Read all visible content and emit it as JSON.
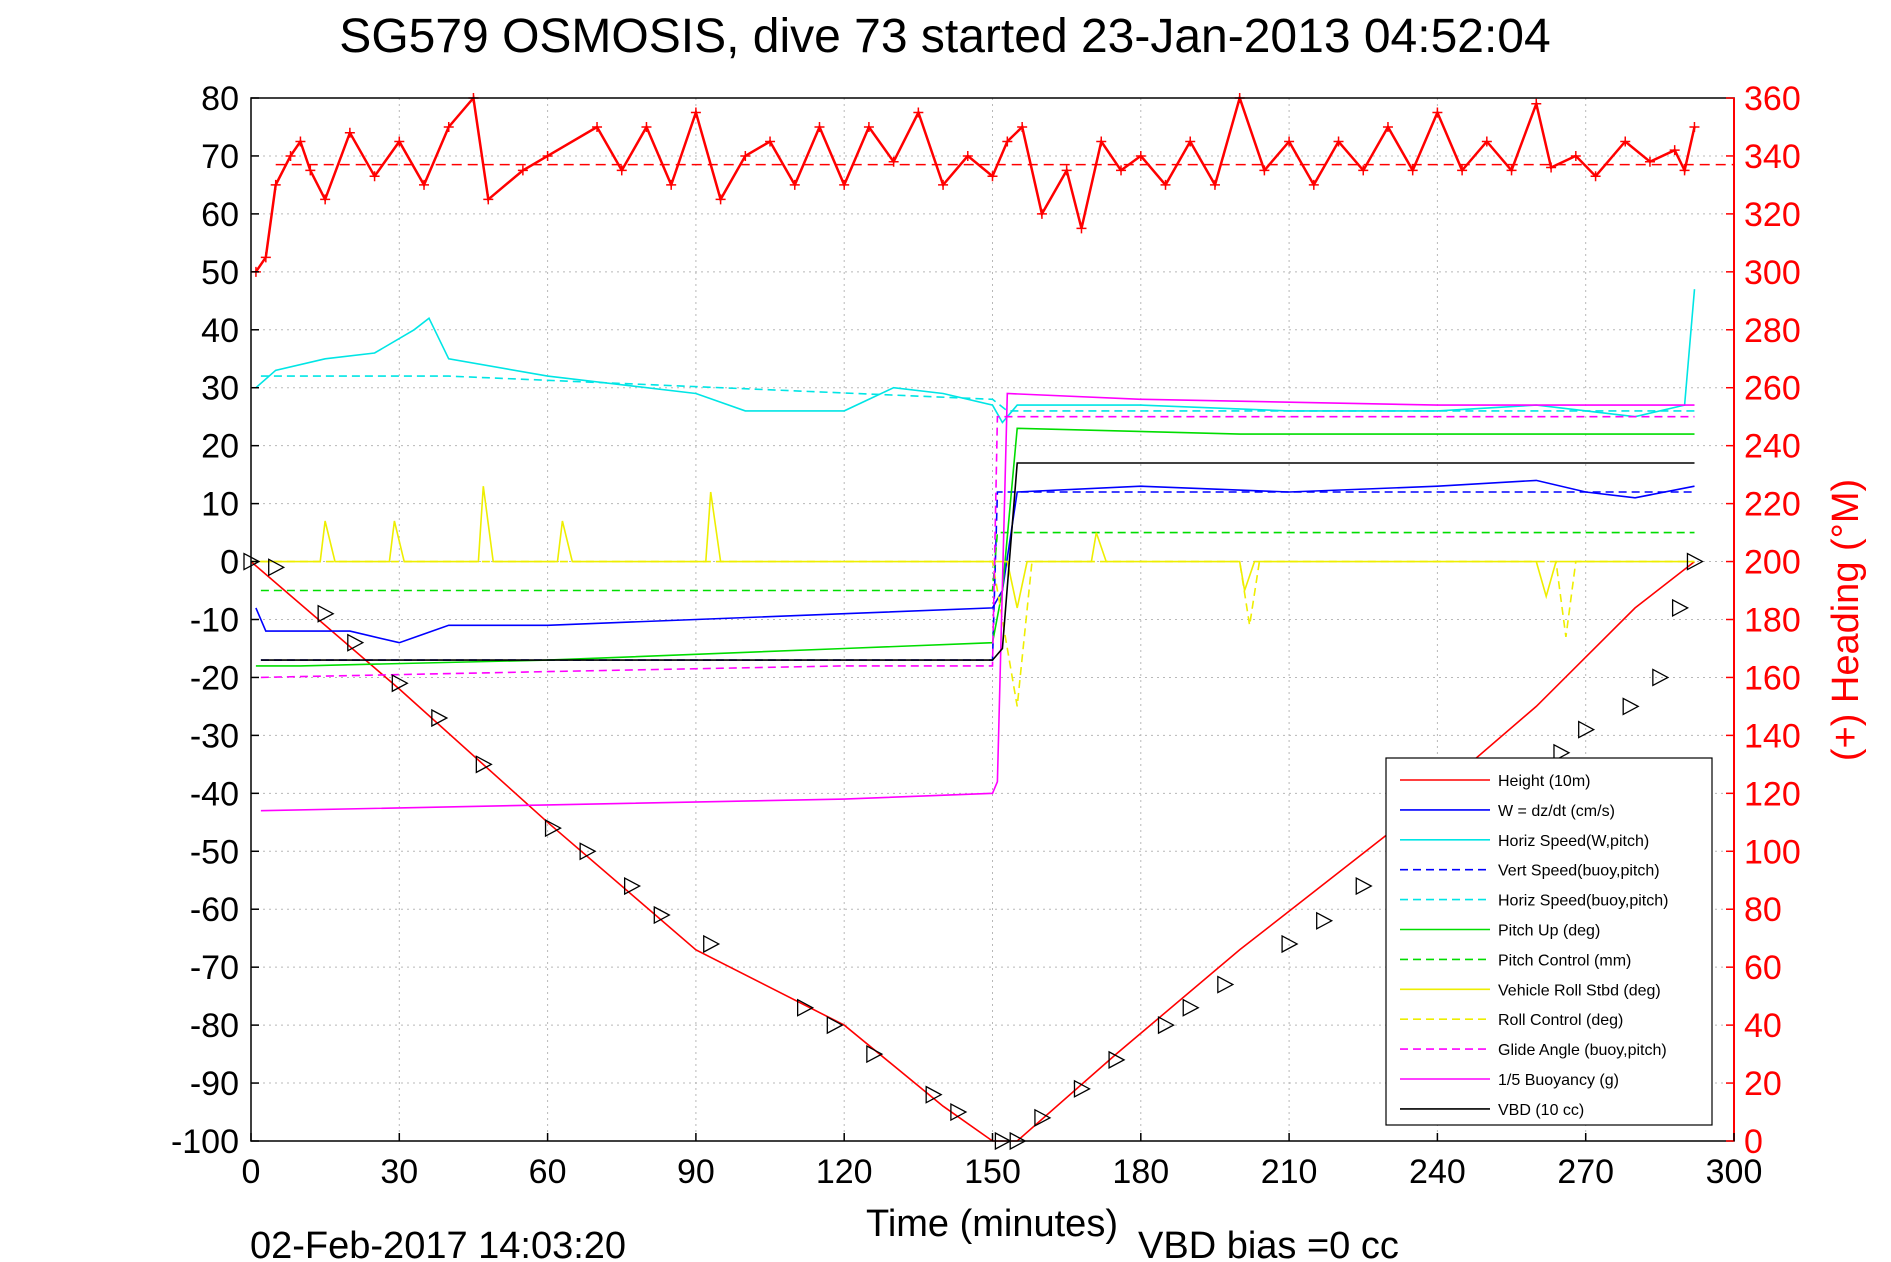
{
  "chart_data": {
    "type": "line",
    "title": "SG579 OSMOSIS, dive 73 started 23-Jan-2013 04:52:04",
    "xlabel": "Time (minutes)",
    "ylabel_right": "(+) Heading (°M)",
    "xlim": [
      0,
      300
    ],
    "ylim_left": [
      -100,
      80
    ],
    "ylim_right": [
      0,
      360
    ],
    "x_ticks": [
      "0",
      "30",
      "60",
      "90",
      "120",
      "150",
      "180",
      "210",
      "240",
      "270",
      "300"
    ],
    "y_left_ticks": [
      "80",
      "70",
      "60",
      "50",
      "40",
      "30",
      "20",
      "10",
      "0",
      "-10",
      "-20",
      "-30",
      "-40",
      "-50",
      "-60",
      "-70",
      "-80",
      "-90",
      "-100"
    ],
    "y_right_ticks": [
      "360",
      "340",
      "320",
      "300",
      "280",
      "260",
      "240",
      "220",
      "200",
      "180",
      "160",
      "140",
      "120",
      "100",
      "80",
      "60",
      "40",
      "20",
      "0"
    ],
    "grid": true,
    "legend_position": "bottom-right",
    "footer_left": "02-Feb-2017 14:03:20",
    "footer_right": "VBD bias =0 cc",
    "heading_reference": 337,
    "series": [
      {
        "name": "Height (10m)",
        "color": "#ff0000",
        "style": "solid",
        "points": [
          [
            0,
            0
          ],
          [
            30,
            -22
          ],
          [
            60,
            -45
          ],
          [
            90,
            -67
          ],
          [
            120,
            -80
          ],
          [
            140,
            -94
          ],
          [
            150,
            -100
          ],
          [
            155,
            -100
          ],
          [
            175,
            -85
          ],
          [
            200,
            -67
          ],
          [
            230,
            -47
          ],
          [
            260,
            -25
          ],
          [
            280,
            -8
          ],
          [
            292,
            0
          ]
        ]
      },
      {
        "name": "W = dz/dt (cm/s)",
        "color": "#0000ff",
        "style": "solid",
        "points": [
          [
            1,
            -8
          ],
          [
            3,
            -12
          ],
          [
            10,
            -12
          ],
          [
            20,
            -12
          ],
          [
            30,
            -14
          ],
          [
            40,
            -11
          ],
          [
            60,
            -11
          ],
          [
            90,
            -10
          ],
          [
            120,
            -9
          ],
          [
            150,
            -8
          ],
          [
            152,
            -5
          ],
          [
            155,
            12
          ],
          [
            180,
            13
          ],
          [
            210,
            12
          ],
          [
            240,
            13
          ],
          [
            260,
            14
          ],
          [
            270,
            12
          ],
          [
            280,
            11
          ],
          [
            292,
            13
          ]
        ]
      },
      {
        "name": "Horiz Speed(W,pitch)",
        "color": "#00e5e5",
        "style": "solid",
        "points": [
          [
            1,
            30
          ],
          [
            5,
            33
          ],
          [
            15,
            35
          ],
          [
            25,
            36
          ],
          [
            33,
            40
          ],
          [
            36,
            42
          ],
          [
            40,
            35
          ],
          [
            60,
            32
          ],
          [
            90,
            29
          ],
          [
            100,
            26
          ],
          [
            120,
            26
          ],
          [
            130,
            30
          ],
          [
            140,
            29
          ],
          [
            150,
            27
          ],
          [
            152,
            24
          ],
          [
            155,
            27
          ],
          [
            180,
            27
          ],
          [
            210,
            26
          ],
          [
            240,
            26
          ],
          [
            260,
            27
          ],
          [
            280,
            25
          ],
          [
            290,
            27
          ],
          [
            292,
            47
          ]
        ]
      },
      {
        "name": "Vert Speed(buoy,pitch)",
        "color": "#0000ff",
        "style": "dashed",
        "points": [
          [
            2,
            -17
          ],
          [
            150,
            -17
          ],
          [
            151,
            12
          ],
          [
            292,
            12
          ]
        ]
      },
      {
        "name": "Horiz Speed(buoy,pitch)",
        "color": "#00e5e5",
        "style": "dashed",
        "points": [
          [
            2,
            32
          ],
          [
            40,
            32
          ],
          [
            150,
            28
          ],
          [
            153,
            26
          ],
          [
            292,
            26
          ]
        ]
      },
      {
        "name": "Pitch Up (deg)",
        "color": "#00dd00",
        "style": "solid",
        "points": [
          [
            1,
            -18
          ],
          [
            10,
            -18
          ],
          [
            60,
            -17
          ],
          [
            120,
            -15
          ],
          [
            150,
            -14
          ],
          [
            152,
            -5
          ],
          [
            155,
            23
          ],
          [
            200,
            22
          ],
          [
            260,
            22
          ],
          [
            292,
            22
          ]
        ]
      },
      {
        "name": "Pitch Control (mm)",
        "color": "#00dd00",
        "style": "dashed",
        "points": [
          [
            2,
            -5
          ],
          [
            150,
            -5
          ],
          [
            151,
            5
          ],
          [
            292,
            5
          ]
        ]
      },
      {
        "name": "Vehicle Roll Stbd (deg)",
        "color": "#eeee00",
        "style": "solid",
        "points": [
          [
            0,
            0
          ],
          [
            14,
            0
          ],
          [
            15,
            7
          ],
          [
            17,
            0
          ],
          [
            28,
            0
          ],
          [
            29,
            7
          ],
          [
            31,
            0
          ],
          [
            46,
            0
          ],
          [
            47,
            13
          ],
          [
            49,
            0
          ],
          [
            62,
            0
          ],
          [
            63,
            7
          ],
          [
            65,
            0
          ],
          [
            92,
            0
          ],
          [
            93,
            12
          ],
          [
            95,
            0
          ],
          [
            150,
            0
          ],
          [
            153,
            0
          ],
          [
            155,
            -8
          ],
          [
            157,
            0
          ],
          [
            170,
            0
          ],
          [
            171,
            5
          ],
          [
            173,
            0
          ],
          [
            200,
            0
          ],
          [
            201,
            -5
          ],
          [
            203,
            0
          ],
          [
            260,
            0
          ],
          [
            262,
            -6
          ],
          [
            264,
            0
          ],
          [
            292,
            0
          ]
        ]
      },
      {
        "name": "Roll Control (deg)",
        "color": "#eeee00",
        "style": "dashed",
        "points": [
          [
            2,
            0
          ],
          [
            150,
            0
          ],
          [
            155,
            -25
          ],
          [
            158,
            0
          ],
          [
            200,
            0
          ],
          [
            202,
            -11
          ],
          [
            204,
            0
          ],
          [
            264,
            0
          ],
          [
            266,
            -13
          ],
          [
            268,
            0
          ],
          [
            292,
            0
          ]
        ]
      },
      {
        "name": "Glide Angle (buoy,pitch)",
        "color": "#ff00ff",
        "style": "dashed",
        "points": [
          [
            2,
            -20
          ],
          [
            60,
            -19
          ],
          [
            120,
            -18
          ],
          [
            150,
            -18
          ],
          [
            151,
            25
          ],
          [
            292,
            25
          ]
        ]
      },
      {
        "name": "1/5 Buoyancy (g)",
        "color": "#ff00ff",
        "style": "solid",
        "points": [
          [
            2,
            -43
          ],
          [
            60,
            -42
          ],
          [
            120,
            -41
          ],
          [
            150,
            -40
          ],
          [
            151,
            -38
          ],
          [
            153,
            29
          ],
          [
            180,
            28
          ],
          [
            240,
            27
          ],
          [
            292,
            27
          ]
        ]
      },
      {
        "name": "VBD (10 cc)",
        "color": "#000000",
        "style": "solid",
        "points": [
          [
            2,
            -17
          ],
          [
            150,
            -17
          ],
          [
            152,
            -15
          ],
          [
            155,
            17
          ],
          [
            292,
            17
          ]
        ]
      }
    ],
    "heading_series": {
      "name": "Heading (+)",
      "axis": "right",
      "color": "#ff0000",
      "points": [
        [
          1,
          300
        ],
        [
          3,
          305
        ],
        [
          5,
          330
        ],
        [
          8,
          340
        ],
        [
          10,
          345
        ],
        [
          12,
          335
        ],
        [
          15,
          325
        ],
        [
          20,
          348
        ],
        [
          25,
          333
        ],
        [
          30,
          345
        ],
        [
          35,
          330
        ],
        [
          40,
          350
        ],
        [
          45,
          360
        ],
        [
          48,
          325
        ],
        [
          55,
          335
        ],
        [
          60,
          340
        ],
        [
          70,
          350
        ],
        [
          75,
          335
        ],
        [
          80,
          350
        ],
        [
          85,
          330
        ],
        [
          90,
          355
        ],
        [
          95,
          325
        ],
        [
          100,
          340
        ],
        [
          105,
          345
        ],
        [
          110,
          330
        ],
        [
          115,
          350
        ],
        [
          120,
          330
        ],
        [
          125,
          350
        ],
        [
          130,
          338
        ],
        [
          135,
          355
        ],
        [
          140,
          330
        ],
        [
          145,
          340
        ],
        [
          150,
          333
        ],
        [
          153,
          345
        ],
        [
          156,
          350
        ],
        [
          160,
          320
        ],
        [
          165,
          335
        ],
        [
          168,
          315
        ],
        [
          172,
          345
        ],
        [
          176,
          335
        ],
        [
          180,
          340
        ],
        [
          185,
          330
        ],
        [
          190,
          345
        ],
        [
          195,
          330
        ],
        [
          200,
          360
        ],
        [
          205,
          335
        ],
        [
          210,
          345
        ],
        [
          215,
          330
        ],
        [
          220,
          345
        ],
        [
          225,
          335
        ],
        [
          230,
          350
        ],
        [
          235,
          335
        ],
        [
          240,
          355
        ],
        [
          245,
          335
        ],
        [
          250,
          345
        ],
        [
          255,
          335
        ],
        [
          260,
          358
        ],
        [
          263,
          336
        ],
        [
          268,
          340
        ],
        [
          272,
          333
        ],
        [
          278,
          345
        ],
        [
          283,
          338
        ],
        [
          288,
          342
        ],
        [
          290,
          335
        ],
        [
          292,
          350
        ]
      ]
    },
    "markers": {
      "name": "triangle markers",
      "symbol": "triangle",
      "points": [
        [
          0,
          0
        ],
        [
          5,
          -1
        ],
        [
          15,
          -9
        ],
        [
          21,
          -14
        ],
        [
          30,
          -21
        ],
        [
          38,
          -27
        ],
        [
          47,
          -35
        ],
        [
          61,
          -46
        ],
        [
          68,
          -50
        ],
        [
          77,
          -56
        ],
        [
          83,
          -61
        ],
        [
          93,
          -66
        ],
        [
          112,
          -77
        ],
        [
          118,
          -80
        ],
        [
          126,
          -85
        ],
        [
          138,
          -92
        ],
        [
          143,
          -95
        ],
        [
          152,
          -100
        ],
        [
          155,
          -100
        ],
        [
          160,
          -96
        ],
        [
          168,
          -91
        ],
        [
          175,
          -86
        ],
        [
          185,
          -80
        ],
        [
          190,
          -77
        ],
        [
          197,
          -73
        ],
        [
          210,
          -66
        ],
        [
          217,
          -62
        ],
        [
          225,
          -56
        ],
        [
          232,
          -53
        ],
        [
          242,
          -48
        ],
        [
          248,
          -44
        ],
        [
          258,
          -37
        ],
        [
          265,
          -33
        ],
        [
          270,
          -29
        ],
        [
          279,
          -25
        ],
        [
          285,
          -20
        ],
        [
          289,
          -8
        ],
        [
          292,
          0
        ]
      ]
    }
  }
}
